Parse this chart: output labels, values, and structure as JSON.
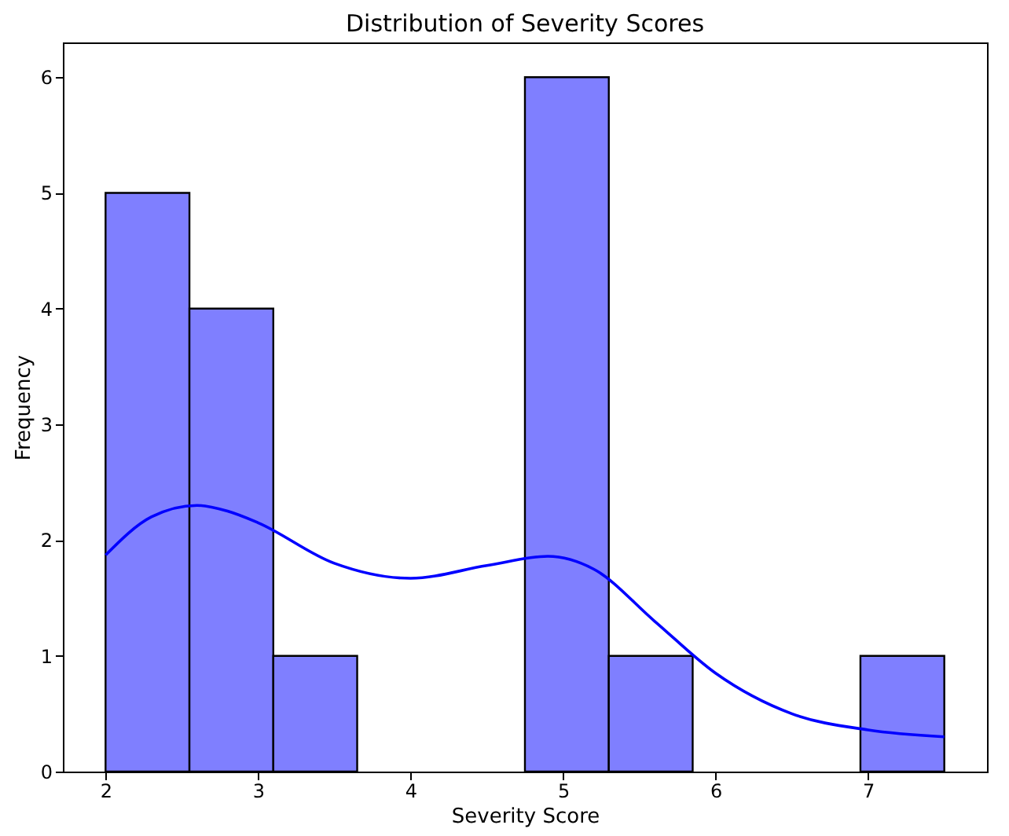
{
  "chart_data": {
    "type": "histogram",
    "title": "Distribution of Severity Scores",
    "xlabel": "Severity Score",
    "ylabel": "Frequency",
    "series": [
      {
        "color": "#7f7fff",
        "bins": [
          2,
          2.55,
          3.1,
          3.65,
          4.2,
          4.75,
          5.3,
          5.85,
          6.4,
          6.95,
          7.5
        ],
        "values": [
          5,
          4,
          1,
          0,
          0,
          6,
          1,
          0,
          0,
          1
        ]
      },
      {
        "type": "line",
        "color": "#0000ff",
        "x": [
          2,
          2.3,
          2.6,
          2.8,
          3,
          3.5,
          4,
          4.5,
          4.9,
          5.2,
          5.6,
          6,
          6.5,
          7,
          7.5
        ],
        "values": [
          1.87,
          2.2,
          2.3,
          2.25,
          2.15,
          1.8,
          1.67,
          1.78,
          1.86,
          1.75,
          1.3,
          0.85,
          0.5,
          0.36,
          0.3
        ]
      }
    ],
    "xlim": [
      1.72,
      7.78
    ],
    "ylim": [
      0,
      6.3
    ],
    "xticks": [
      2,
      3,
      4,
      5,
      6,
      7
    ],
    "yticks": [
      0,
      1,
      2,
      3,
      4,
      5,
      6
    ],
    "grid": false
  }
}
